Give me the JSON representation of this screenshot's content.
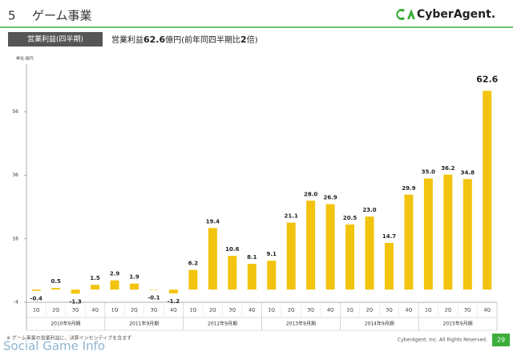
{
  "header": {
    "section_number": "5",
    "title": "ゲーム事業",
    "logo": "CyberAgent."
  },
  "chart_data": {
    "type": "bar",
    "label_box": "営業利益(四半期)",
    "headline_parts": [
      "営業利益",
      "62.6",
      "億円(前年同四半期比",
      "2",
      "倍)"
    ],
    "unit": "単位:億円",
    "categories": [
      "1Q",
      "2Q",
      "3Q",
      "4Q",
      "1Q",
      "2Q",
      "3Q",
      "4Q",
      "1Q",
      "2Q",
      "3Q",
      "4Q",
      "1Q",
      "2Q",
      "3Q",
      "4Q",
      "1Q",
      "2Q",
      "3Q",
      "4Q",
      "1Q",
      "2Q",
      "3Q",
      "4Q"
    ],
    "groups": [
      "2010年9月期",
      "2011年9月期",
      "2012年9月期",
      "2013年9月期",
      "2014年9月期",
      "2015年9月期"
    ],
    "values": [
      -0.4,
      0.5,
      -1.3,
      1.5,
      2.9,
      1.9,
      -0.1,
      -1.2,
      6.2,
      19.4,
      10.6,
      8.1,
      9.1,
      21.1,
      28.0,
      26.9,
      20.5,
      23.0,
      14.7,
      29.9,
      35.0,
      36.2,
      34.8,
      62.6
    ],
    "value_labels": [
      "-0.4",
      "0.5",
      "-1.3",
      "1.5",
      "2.9",
      "1.9",
      "-0.1",
      "-1.2",
      "6.2",
      "19.4",
      "10.6",
      "8.1",
      "9.1",
      "21.1",
      "28.0",
      "26.9",
      "20.5",
      "23.0",
      "14.7",
      "29.9",
      "35.0",
      "36.2",
      "34.8",
      "62.6"
    ],
    "color": "#f2c40f",
    "ylim": [
      -4,
      71
    ],
    "yticks": [
      -4,
      16,
      36,
      56
    ]
  },
  "footer": {
    "footnote": "※ ゲーム事業の営業利益に、決算インセンティブを含まず",
    "watermark": "Social Game Info",
    "copyright": "CyberAgent, Inc. All Rights Reserved.",
    "page_number": "29"
  }
}
